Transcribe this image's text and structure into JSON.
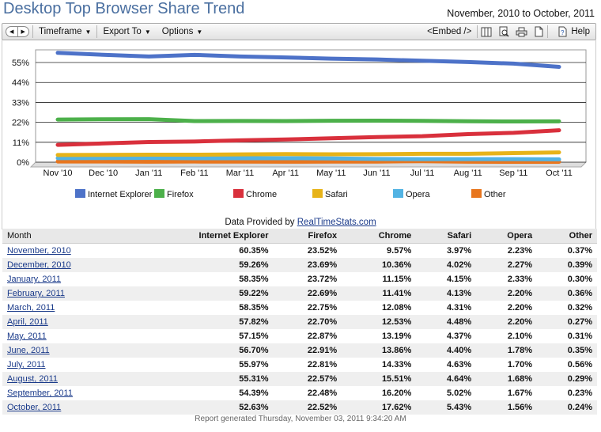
{
  "header": {
    "title": "Desktop Top Browser Share Trend",
    "date_range": "November, 2010 to October, 2011"
  },
  "toolbar": {
    "timeframe_label": "Timeframe",
    "export_label": "Export To",
    "options_label": "Options",
    "embed_label": "<Embed />",
    "help_label": "Help"
  },
  "provided": {
    "prefix": "Data Provided by ",
    "link": "RealTimeStats.com"
  },
  "chart_data": {
    "type": "line",
    "x": [
      "Nov '10",
      "Dec '10",
      "Jan '11",
      "Feb '11",
      "Mar '11",
      "Apr '11",
      "May '11",
      "Jun '11",
      "Jul '11",
      "Aug '11",
      "Sep '11",
      "Oct '11"
    ],
    "yticks": [
      "55%",
      "44%",
      "33%",
      "22%",
      "11%",
      "0%"
    ],
    "ylim": [
      0,
      62
    ],
    "grid": true,
    "legend_position": "bottom",
    "series": [
      {
        "name": "Internet Explorer",
        "color": "#4d72c8",
        "values": [
          60.35,
          59.26,
          58.35,
          59.22,
          58.35,
          57.82,
          57.15,
          56.7,
          55.97,
          55.31,
          54.39,
          52.63
        ]
      },
      {
        "name": "Firefox",
        "color": "#4cb04a",
        "values": [
          23.52,
          23.69,
          23.72,
          22.69,
          22.75,
          22.7,
          22.87,
          22.91,
          22.81,
          22.57,
          22.48,
          22.52
        ]
      },
      {
        "name": "Chrome",
        "color": "#d9303c",
        "values": [
          9.57,
          10.36,
          11.15,
          11.41,
          12.08,
          12.53,
          13.19,
          13.86,
          14.33,
          15.51,
          16.2,
          17.62
        ]
      },
      {
        "name": "Safari",
        "color": "#e7b318",
        "values": [
          3.97,
          4.02,
          4.15,
          4.13,
          4.31,
          4.48,
          4.37,
          4.4,
          4.63,
          4.64,
          5.02,
          5.43
        ]
      },
      {
        "name": "Opera",
        "color": "#52b3e3",
        "values": [
          2.23,
          2.27,
          2.33,
          2.2,
          2.2,
          2.2,
          2.1,
          1.78,
          1.7,
          1.68,
          1.67,
          1.56
        ]
      },
      {
        "name": "Other",
        "color": "#e8761e",
        "values": [
          0.37,
          0.39,
          0.3,
          0.36,
          0.32,
          0.27,
          0.31,
          0.35,
          0.56,
          0.29,
          0.23,
          0.24
        ]
      }
    ]
  },
  "table": {
    "headers": [
      "Month",
      "Internet Explorer",
      "Firefox",
      "Chrome",
      "Safari",
      "Opera",
      "Other"
    ],
    "rows": [
      [
        "November, 2010",
        "60.35%",
        "23.52%",
        "9.57%",
        "3.97%",
        "2.23%",
        "0.37%"
      ],
      [
        "December, 2010",
        "59.26%",
        "23.69%",
        "10.36%",
        "4.02%",
        "2.27%",
        "0.39%"
      ],
      [
        "January, 2011",
        "58.35%",
        "23.72%",
        "11.15%",
        "4.15%",
        "2.33%",
        "0.30%"
      ],
      [
        "February, 2011",
        "59.22%",
        "22.69%",
        "11.41%",
        "4.13%",
        "2.20%",
        "0.36%"
      ],
      [
        "March, 2011",
        "58.35%",
        "22.75%",
        "12.08%",
        "4.31%",
        "2.20%",
        "0.32%"
      ],
      [
        "April, 2011",
        "57.82%",
        "22.70%",
        "12.53%",
        "4.48%",
        "2.20%",
        "0.27%"
      ],
      [
        "May, 2011",
        "57.15%",
        "22.87%",
        "13.19%",
        "4.37%",
        "2.10%",
        "0.31%"
      ],
      [
        "June, 2011",
        "56.70%",
        "22.91%",
        "13.86%",
        "4.40%",
        "1.78%",
        "0.35%"
      ],
      [
        "July, 2011",
        "55.97%",
        "22.81%",
        "14.33%",
        "4.63%",
        "1.70%",
        "0.56%"
      ],
      [
        "August, 2011",
        "55.31%",
        "22.57%",
        "15.51%",
        "4.64%",
        "1.68%",
        "0.29%"
      ],
      [
        "September, 2011",
        "54.39%",
        "22.48%",
        "16.20%",
        "5.02%",
        "1.67%",
        "0.23%"
      ],
      [
        "October, 2011",
        "52.63%",
        "22.52%",
        "17.62%",
        "5.43%",
        "1.56%",
        "0.24%"
      ]
    ]
  },
  "footer": {
    "generated": "Report generated Thursday, November 03, 2011 9:34:20 AM"
  }
}
